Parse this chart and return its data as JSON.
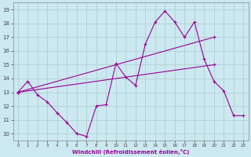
{
  "xlabel": "Windchill (Refroidissement éolien,°C)",
  "background_color": "#cce8f0",
  "grid_color": "#aacccc",
  "line_color": "#990099",
  "xlim": [
    -0.5,
    23.5
  ],
  "ylim": [
    9.5,
    19.5
  ],
  "yticks": [
    10,
    11,
    12,
    13,
    14,
    15,
    16,
    17,
    18,
    19
  ],
  "xticks": [
    0,
    1,
    2,
    3,
    4,
    5,
    6,
    7,
    8,
    9,
    10,
    11,
    12,
    13,
    14,
    15,
    16,
    17,
    18,
    19,
    20,
    21,
    22,
    23
  ],
  "line1_x": [
    0,
    1,
    2,
    3,
    4,
    5,
    6,
    7,
    8,
    9,
    10,
    11,
    12,
    13,
    14,
    15,
    16,
    17,
    18,
    19,
    20,
    21,
    22,
    23
  ],
  "line1_y": [
    13.0,
    13.8,
    12.8,
    12.3,
    11.5,
    10.8,
    10.0,
    9.8,
    12.0,
    12.1,
    15.1,
    14.1,
    13.5,
    16.5,
    18.1,
    18.9,
    18.1,
    17.0,
    18.1,
    15.4,
    13.8,
    13.1,
    11.3,
    11.3
  ],
  "line2_x": [
    0,
    20
  ],
  "line2_y": [
    13.0,
    17.0
  ],
  "line3_x": [
    0,
    20
  ],
  "line3_y": [
    13.0,
    15.0
  ]
}
